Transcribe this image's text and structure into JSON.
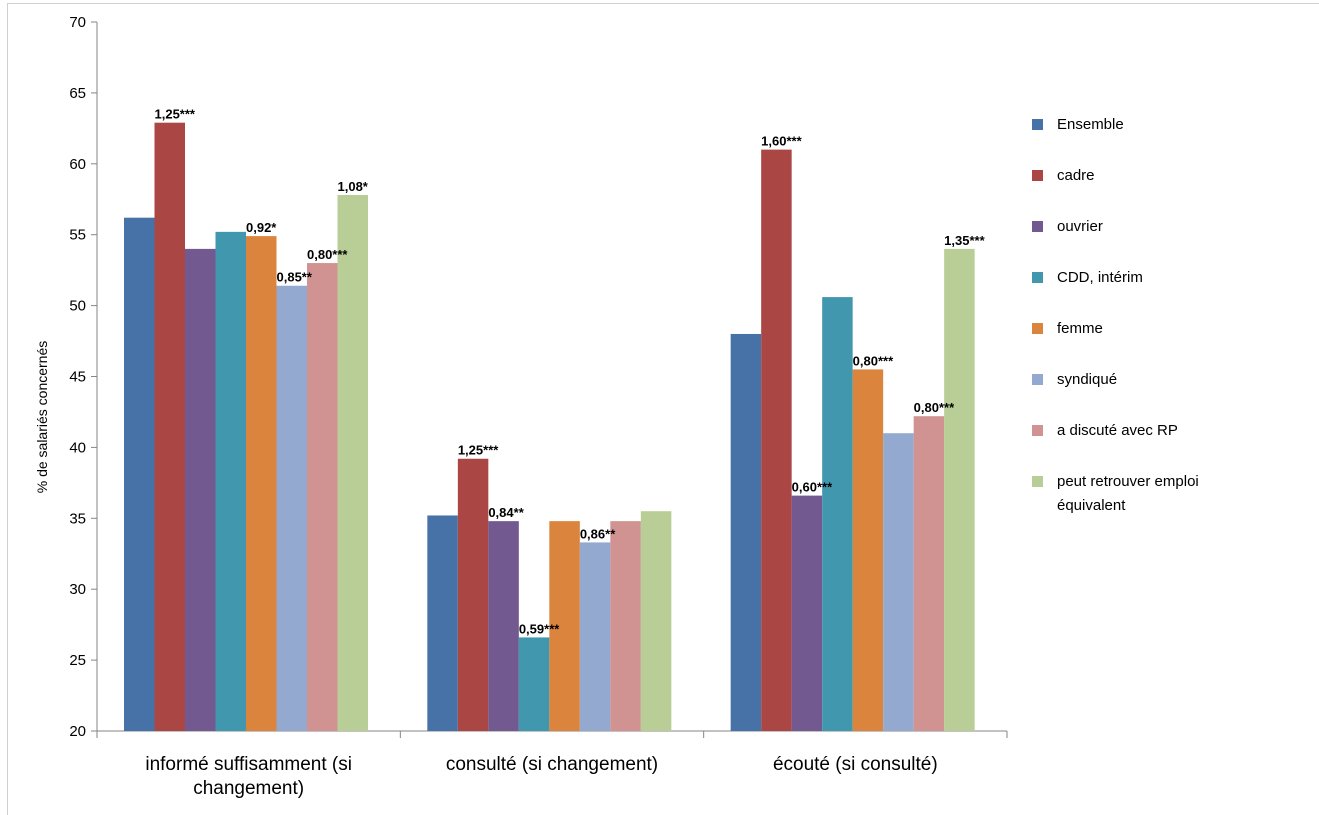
{
  "chart_data": {
    "type": "bar",
    "title": "",
    "xlabel": "",
    "ylabel": "% de salariés concernés",
    "ylim": [
      20,
      70
    ],
    "yticks": [
      20,
      25,
      30,
      35,
      40,
      45,
      50,
      55,
      60,
      65,
      70
    ],
    "grid": false,
    "legend_position": "right",
    "categories": [
      "informé suffisamment (si changement)",
      "consulté (si changement)",
      "écouté (si consulté)"
    ],
    "category_lines": [
      [
        "informé suffisamment (si",
        "changement)"
      ],
      [
        "consulté (si changement)"
      ],
      [
        "écouté (si consulté)"
      ]
    ],
    "series": [
      {
        "name": "Ensemble",
        "color": "#4672a8",
        "values": [
          56.2,
          35.2,
          48.0
        ],
        "labels": [
          "",
          "",
          ""
        ]
      },
      {
        "name": "cadre",
        "color": "#aa4643",
        "values": [
          62.9,
          39.2,
          61.0
        ],
        "labels": [
          "1,25***",
          "1,25***",
          "1,60***"
        ]
      },
      {
        "name": "ouvrier",
        "color": "#725990",
        "values": [
          54.0,
          34.8,
          36.6
        ],
        "labels": [
          "",
          "0,84**",
          "0,60***"
        ]
      },
      {
        "name": "CDD, intérim",
        "color": "#4197ae",
        "values": [
          55.2,
          26.6,
          50.6
        ],
        "labels": [
          "",
          "0,59***",
          ""
        ]
      },
      {
        "name": "femme",
        "color": "#db843d",
        "values": [
          54.9,
          34.8,
          45.5
        ],
        "labels": [
          "0,92*",
          "",
          "0,80***"
        ]
      },
      {
        "name": "syndiqué",
        "color": "#93a9d0",
        "values": [
          51.4,
          33.3,
          41.0
        ],
        "labels": [
          "0,85**",
          "0,86**",
          ""
        ]
      },
      {
        "name": "a discuté avec RP",
        "color": "#d09392",
        "values": [
          53.0,
          34.8,
          42.2
        ],
        "labels": [
          "0,80***",
          "",
          "0,80***"
        ]
      },
      {
        "name": "peut retrouver emploi équivalent",
        "color": "#b9cd96",
        "values": [
          57.8,
          35.5,
          54.0
        ],
        "labels": [
          "1,08*",
          "",
          "1,35***"
        ],
        "legend_lines": [
          "peut retrouver emploi",
          "équivalent"
        ]
      }
    ]
  }
}
